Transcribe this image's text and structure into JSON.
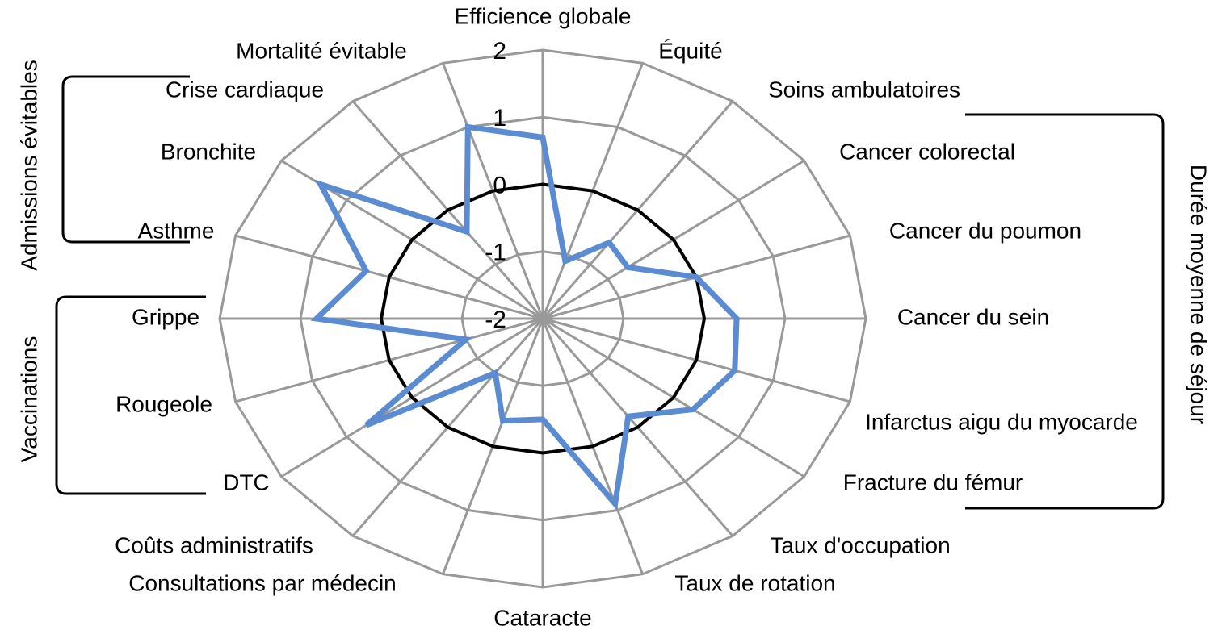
{
  "chart_data": {
    "type": "radar",
    "categories": [
      "Efficience globale",
      "Équité",
      "Soins ambulatoires",
      "Cancer colorectal",
      "Cancer du poumon",
      "Cancer du sein",
      "Infarctus aigu du myocarde",
      "Fracture du fémur",
      "Taux d'occupation",
      "Taux de rotation",
      "Cataracte",
      "Consultations par médecin",
      "Coûts administratifs",
      "DTC",
      "Rougeole",
      "Grippe",
      "Asthme",
      "Bronchite",
      "Crise cardiaque",
      "Mortalité évitable"
    ],
    "series": [
      {
        "color": "#5b8bd0",
        "values": [
          0.7,
          -1.1,
          -0.6,
          -0.7,
          0,
          0.4,
          0.5,
          0.3,
          -0.2,
          0.9,
          -0.5,
          -0.4,
          -1.0,
          0.7,
          -1.0,
          0.8,
          0.3,
          1.4,
          -0.4,
          1.0
        ]
      },
      {
        "color": "#000000",
        "values": [
          0,
          0,
          0,
          0,
          0,
          0,
          0,
          0,
          0,
          0,
          0,
          0,
          0,
          0,
          0,
          0,
          0,
          0,
          0,
          0
        ]
      }
    ],
    "ylim": [
      -2,
      2
    ],
    "yticks": [
      -2,
      -1,
      0,
      1,
      2
    ],
    "grid": true,
    "annotations": [
      "Admissions évitables",
      "Vaccinations",
      "Durée moyenne de séjour"
    ]
  }
}
